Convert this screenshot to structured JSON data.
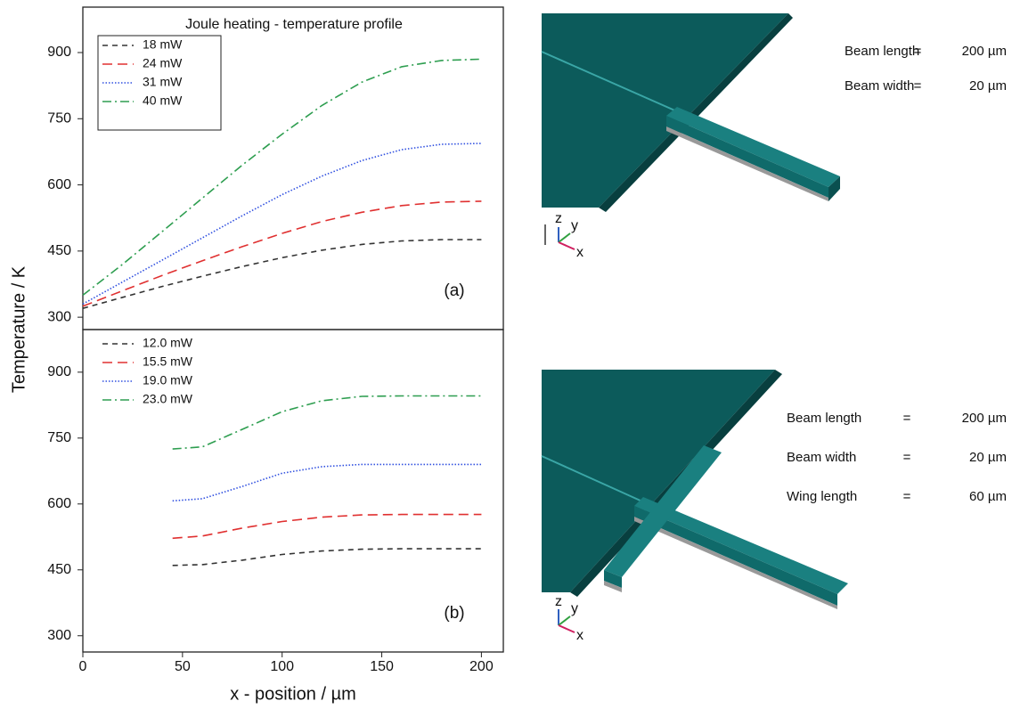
{
  "chart_data": [
    {
      "type": "line",
      "title": "Joule heating - temperature profile",
      "annotation": "(a)",
      "ylabel": "Temperature / K",
      "x": [
        0,
        20,
        40,
        60,
        80,
        100,
        120,
        140,
        160,
        180,
        200
      ],
      "series": [
        {
          "name": "18 mW",
          "color": "#333333",
          "dash": "dashed",
          "values": [
            320,
            345,
            370,
            393,
            415,
            435,
            452,
            465,
            473,
            476,
            476
          ]
        },
        {
          "name": "24 mW",
          "color": "#e03030",
          "dash": "longdash",
          "values": [
            325,
            360,
            395,
            428,
            460,
            490,
            517,
            538,
            553,
            561,
            563
          ]
        },
        {
          "name": "31 mW",
          "color": "#3050e0",
          "dash": "dotted",
          "values": [
            330,
            380,
            430,
            480,
            530,
            578,
            620,
            655,
            680,
            692,
            694
          ]
        },
        {
          "name": "40 mW",
          "color": "#2e9e50",
          "dash": "dashdot",
          "values": [
            350,
            420,
            495,
            570,
            645,
            715,
            780,
            833,
            868,
            882,
            885
          ]
        }
      ],
      "xlim": [
        0,
        211
      ],
      "ylim": [
        272,
        1003
      ],
      "yticks": [
        300,
        450,
        600,
        750,
        900
      ],
      "legend_frame": true
    },
    {
      "type": "line",
      "annotation": "(b)",
      "xlabel": "x - position / µm",
      "x": [
        45,
        60,
        80,
        100,
        120,
        140,
        160,
        180,
        200
      ],
      "series": [
        {
          "name": "12.0 mW",
          "color": "#333333",
          "dash": "dashed",
          "values": [
            460,
            462,
            472,
            485,
            493,
            497,
            498,
            498,
            498
          ]
        },
        {
          "name": "15.5 mW",
          "color": "#e03030",
          "dash": "longdash",
          "values": [
            522,
            527,
            545,
            560,
            570,
            575,
            576,
            576,
            576
          ]
        },
        {
          "name": "19.0 mW",
          "color": "#3050e0",
          "dash": "dotted",
          "values": [
            607,
            612,
            640,
            670,
            685,
            690,
            690,
            690,
            690
          ]
        },
        {
          "name": "23.0 mW",
          "color": "#2e9e50",
          "dash": "dashdot",
          "values": [
            725,
            730,
            770,
            810,
            835,
            845,
            846,
            846,
            846
          ]
        }
      ],
      "xlim": [
        0,
        211
      ],
      "ylim": [
        263,
        997
      ],
      "xticks": [
        0,
        50,
        100,
        150,
        200
      ],
      "yticks": [
        300,
        450,
        600,
        750,
        900
      ],
      "legend_frame": false
    }
  ],
  "models": [
    {
      "axes": [
        "z",
        "y",
        "x"
      ],
      "params": [
        {
          "label": "Beam length",
          "equals": "=",
          "value": "200 µm"
        },
        {
          "label": "Beam width",
          "equals": "=",
          "value": "20 µm"
        }
      ]
    },
    {
      "axes": [
        "z",
        "y",
        "x"
      ],
      "params": [
        {
          "label": "Beam length",
          "equals": "=",
          "value": "200 µm"
        },
        {
          "label": "Beam width",
          "equals": "=",
          "value": "20 µm"
        },
        {
          "label": "Wing length",
          "equals": "=",
          "value": "60 µm"
        }
      ]
    }
  ]
}
